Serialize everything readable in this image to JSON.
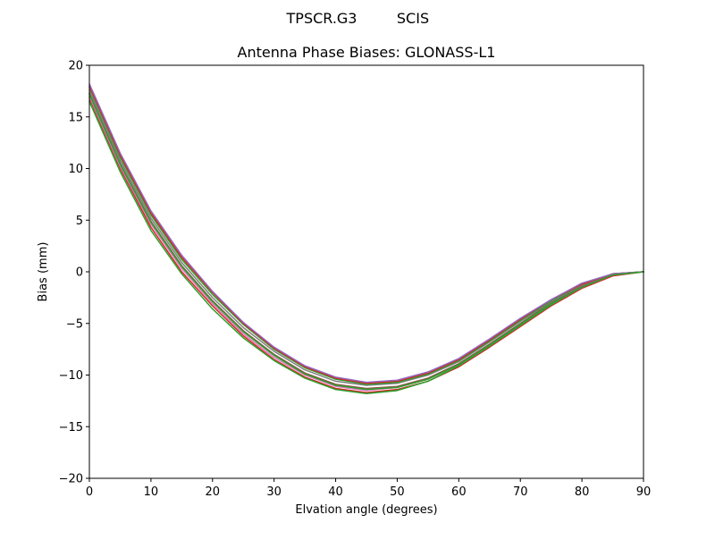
{
  "chart_data": {
    "type": "line",
    "suptitle": {
      "left": "TPSCR.G3",
      "right": "SCIS"
    },
    "title": "Antenna Phase Biases: GLONASS-L1",
    "xlabel": "Elvation angle (degrees)",
    "ylabel": "Bias (mm)",
    "xlim": [
      0,
      90
    ],
    "ylim": [
      -20,
      20
    ],
    "xticks": [
      0,
      10,
      20,
      30,
      40,
      50,
      60,
      70,
      80,
      90
    ],
    "yticks": [
      -20,
      -15,
      -10,
      -5,
      0,
      5,
      10,
      15,
      20
    ],
    "ytick_labels": [
      "−20",
      "−15",
      "−10",
      "−5",
      "0",
      "5",
      "10",
      "15",
      "20"
    ],
    "grid": false,
    "legend": "none",
    "x": [
      0,
      5,
      10,
      15,
      20,
      25,
      30,
      35,
      40,
      45,
      50,
      55,
      60,
      65,
      70,
      75,
      80,
      85,
      90
    ],
    "series": [
      {
        "color": "#d62728",
        "values": [
          16.8,
          10.0,
          4.3,
          0.0,
          -3.3,
          -6.2,
          -8.5,
          -10.2,
          -11.3,
          -11.7,
          -11.4,
          -10.6,
          -9.2,
          -7.3,
          -5.3,
          -3.3,
          -1.6,
          -0.4,
          0.0
        ]
      },
      {
        "color": "#2ca02c",
        "values": [
          16.5,
          9.7,
          4.0,
          -0.2,
          -3.6,
          -6.4,
          -8.6,
          -10.3,
          -11.4,
          -11.8,
          -11.5,
          -10.6,
          -9.1,
          -7.2,
          -5.2,
          -3.2,
          -1.5,
          -0.3,
          0.0
        ]
      },
      {
        "color": "#e377c2",
        "values": [
          17.0,
          10.2,
          4.6,
          0.3,
          -3.1,
          -6.0,
          -8.3,
          -10.0,
          -11.1,
          -11.5,
          -11.2,
          -10.4,
          -9.0,
          -7.1,
          -5.1,
          -3.1,
          -1.5,
          -0.3,
          0.0
        ]
      },
      {
        "color": "#8c564b",
        "values": [
          17.3,
          10.5,
          4.9,
          0.6,
          -2.8,
          -5.7,
          -8.0,
          -9.8,
          -10.9,
          -11.3,
          -11.1,
          -10.3,
          -8.9,
          -7.0,
          -5.0,
          -3.0,
          -1.4,
          -0.3,
          0.0
        ]
      },
      {
        "color": "#7f7f7f",
        "values": [
          17.6,
          10.8,
          5.2,
          0.9,
          -2.5,
          -5.4,
          -7.7,
          -9.5,
          -10.6,
          -11.0,
          -10.8,
          -10.0,
          -8.7,
          -6.8,
          -4.8,
          -2.9,
          -1.3,
          -0.2,
          0.0
        ]
      },
      {
        "color": "#2ca02c",
        "values": [
          17.9,
          11.1,
          5.5,
          1.2,
          -2.2,
          -5.1,
          -7.5,
          -9.3,
          -10.4,
          -10.9,
          -10.7,
          -9.9,
          -8.6,
          -6.7,
          -4.7,
          -2.8,
          -1.2,
          -0.2,
          0.0
        ]
      },
      {
        "color": "#d62728",
        "values": [
          18.0,
          11.3,
          5.7,
          1.4,
          -2.0,
          -5.0,
          -7.4,
          -9.2,
          -10.3,
          -10.8,
          -10.6,
          -9.8,
          -8.5,
          -6.6,
          -4.6,
          -2.7,
          -1.2,
          -0.2,
          0.0
        ]
      },
      {
        "color": "#9467bd",
        "values": [
          18.2,
          11.5,
          5.9,
          1.6,
          -1.9,
          -4.9,
          -7.3,
          -9.1,
          -10.2,
          -10.7,
          -10.5,
          -9.7,
          -8.4,
          -6.5,
          -4.5,
          -2.7,
          -1.1,
          -0.2,
          0.0
        ]
      },
      {
        "color": "#2ca02c",
        "values": [
          17.2,
          10.4,
          4.8,
          0.5,
          -2.9,
          -5.8,
          -8.1,
          -9.9,
          -11.0,
          -11.4,
          -11.2,
          -10.4,
          -9.0,
          -7.1,
          -5.1,
          -3.1,
          -1.5,
          -0.3,
          0.0
        ]
      }
    ]
  }
}
